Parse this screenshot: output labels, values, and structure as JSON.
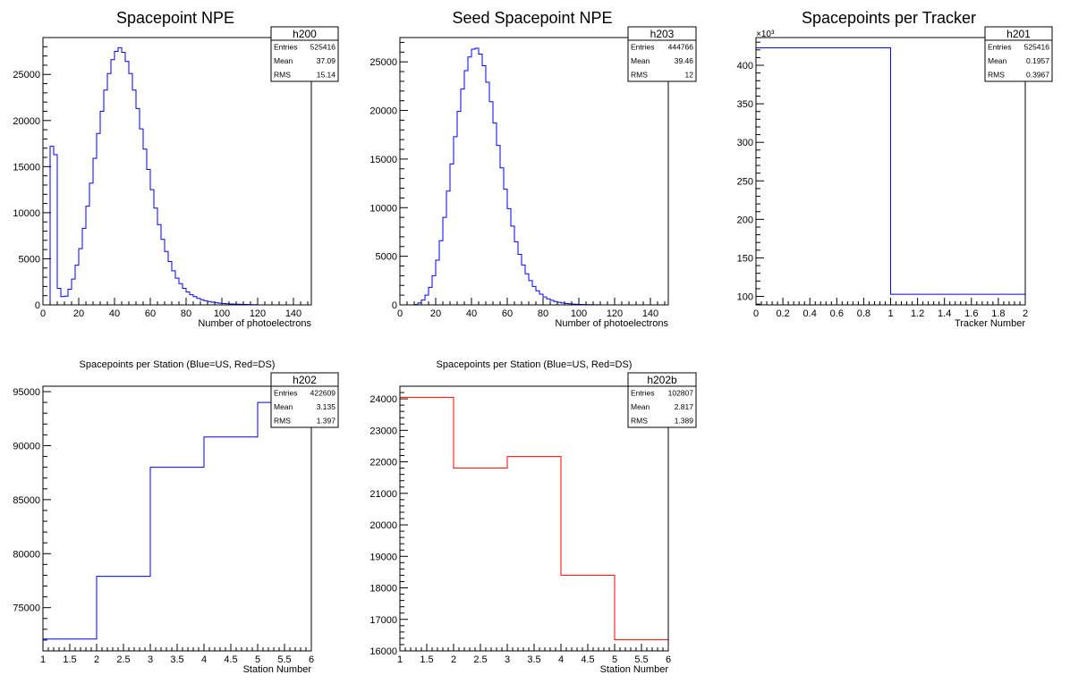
{
  "chart_data": [
    {
      "id": "h200",
      "type": "histogram",
      "title": "Spacepoint NPE",
      "xlabel": "Number of photoelectrons",
      "ylabel": "",
      "xlim": [
        0,
        150
      ],
      "ylim": [
        0,
        29000
      ],
      "xticks": [
        0,
        20,
        40,
        60,
        80,
        100,
        120,
        140
      ],
      "yticks": [
        0,
        5000,
        10000,
        15000,
        20000,
        25000
      ],
      "exponent_label": "",
      "line_color": "#0000ff",
      "bin_width": 2,
      "x_start": 0,
      "values": [
        0,
        0,
        17200,
        16300,
        1800,
        900,
        950,
        1700,
        2800,
        4300,
        6100,
        8300,
        10700,
        13200,
        15900,
        18600,
        21000,
        23300,
        25100,
        26600,
        27500,
        27900,
        27400,
        26400,
        25100,
        23300,
        21300,
        19100,
        16900,
        14700,
        12500,
        10500,
        8700,
        7100,
        5800,
        4700,
        3700,
        2900,
        2300,
        1800,
        1400,
        1100,
        900,
        700,
        560,
        450,
        360,
        290,
        230,
        180,
        145,
        120,
        100,
        85,
        70,
        60,
        50,
        40,
        30,
        20
      ],
      "stats": {
        "name": "h200",
        "rows": [
          {
            "label": "Entries",
            "value": "525416"
          },
          {
            "label": "Mean",
            "value": "37.09"
          },
          {
            "label": "RMS",
            "value": "15.14"
          }
        ]
      }
    },
    {
      "id": "h203",
      "type": "histogram",
      "title": "Seed Spacepoint NPE",
      "xlabel": "Number of photoelectrons",
      "ylabel": "",
      "xlim": [
        0,
        150
      ],
      "ylim": [
        0,
        27500
      ],
      "xticks": [
        0,
        20,
        40,
        60,
        80,
        100,
        120,
        140
      ],
      "yticks": [
        0,
        5000,
        10000,
        15000,
        20000,
        25000
      ],
      "exponent_label": "",
      "line_color": "#0000ff",
      "bin_width": 2,
      "x_start": 0,
      "values": [
        0,
        0,
        0,
        0,
        30,
        200,
        500,
        1000,
        1800,
        3000,
        4600,
        6600,
        9000,
        11700,
        14500,
        17300,
        19900,
        22200,
        24100,
        25500,
        26300,
        26400,
        25800,
        24600,
        22900,
        20900,
        18700,
        16400,
        14100,
        11900,
        9900,
        8100,
        6500,
        5200,
        4100,
        3200,
        2500,
        1900,
        1450,
        1100,
        820,
        620,
        470,
        350,
        260,
        200,
        150,
        110,
        80,
        60,
        45,
        35,
        25,
        20,
        15,
        10
      ],
      "stats": {
        "name": "h203",
        "rows": [
          {
            "label": "Entries",
            "value": "444766"
          },
          {
            "label": "Mean",
            "value": "39.46"
          },
          {
            "label": "RMS",
            "value": "12"
          }
        ]
      }
    },
    {
      "id": "h201",
      "type": "histogram",
      "title": "Spacepoints per Tracker",
      "xlabel": "Tracker Number",
      "ylabel": "",
      "xlim": [
        0,
        2
      ],
      "ylim": [
        89000,
        436000
      ],
      "xticks": [
        0,
        0.2,
        0.4,
        0.6,
        0.8,
        1,
        1.2,
        1.4,
        1.6,
        1.8,
        2
      ],
      "yticks": [
        100000,
        150000,
        200000,
        250000,
        300000,
        350000,
        400000
      ],
      "tick_scale": 1000,
      "exponent_label": "×10³",
      "line_color": "#0000ff",
      "bin_width": 1,
      "x_start": 0,
      "values": [
        422609,
        102807
      ],
      "stats": {
        "name": "h201",
        "rows": [
          {
            "label": "Entries",
            "value": "525416"
          },
          {
            "label": "Mean",
            "value": "0.1957"
          },
          {
            "label": "RMS",
            "value": "0.3967"
          }
        ]
      }
    },
    {
      "id": "h202",
      "type": "histogram",
      "title": "Spacepoints per Station (Blue=US, Red=DS)",
      "xlabel": "Station Number",
      "ylabel": "",
      "xlim": [
        1,
        6
      ],
      "ylim": [
        71000,
        95500
      ],
      "xticks": [
        1,
        1.5,
        2,
        2.5,
        3,
        3.5,
        4,
        4.5,
        5,
        5.5,
        6
      ],
      "yticks": [
        75000,
        80000,
        85000,
        90000,
        95000
      ],
      "exponent_label": "",
      "line_color": "#0000ff",
      "bin_width": 1,
      "x_start": 1,
      "values": [
        72100,
        77900,
        88000,
        90800,
        94000
      ],
      "stats": {
        "name": "h202",
        "rows": [
          {
            "label": "Entries",
            "value": "422609"
          },
          {
            "label": "Mean",
            "value": "3.135"
          },
          {
            "label": "RMS",
            "value": "1.397"
          }
        ]
      }
    },
    {
      "id": "h202b",
      "type": "histogram",
      "title": "Spacepoints per Station (Blue=US, Red=DS)",
      "xlabel": "Station Number",
      "ylabel": "",
      "xlim": [
        1,
        6
      ],
      "ylim": [
        16000,
        24400
      ],
      "xticks": [
        1,
        1.5,
        2,
        2.5,
        3,
        3.5,
        4,
        4.5,
        5,
        5.5,
        6
      ],
      "yticks": [
        16000,
        17000,
        18000,
        19000,
        20000,
        21000,
        22000,
        23000,
        24000
      ],
      "exponent_label": "",
      "line_color": "#ff0000",
      "bin_width": 1,
      "x_start": 1,
      "values": [
        24050,
        21800,
        22170,
        18400,
        16350
      ],
      "stats": {
        "name": "h202b",
        "rows": [
          {
            "label": "Entries",
            "value": "102807"
          },
          {
            "label": "Mean",
            "value": "2.817"
          },
          {
            "label": "RMS",
            "value": "1.389"
          }
        ]
      }
    }
  ]
}
